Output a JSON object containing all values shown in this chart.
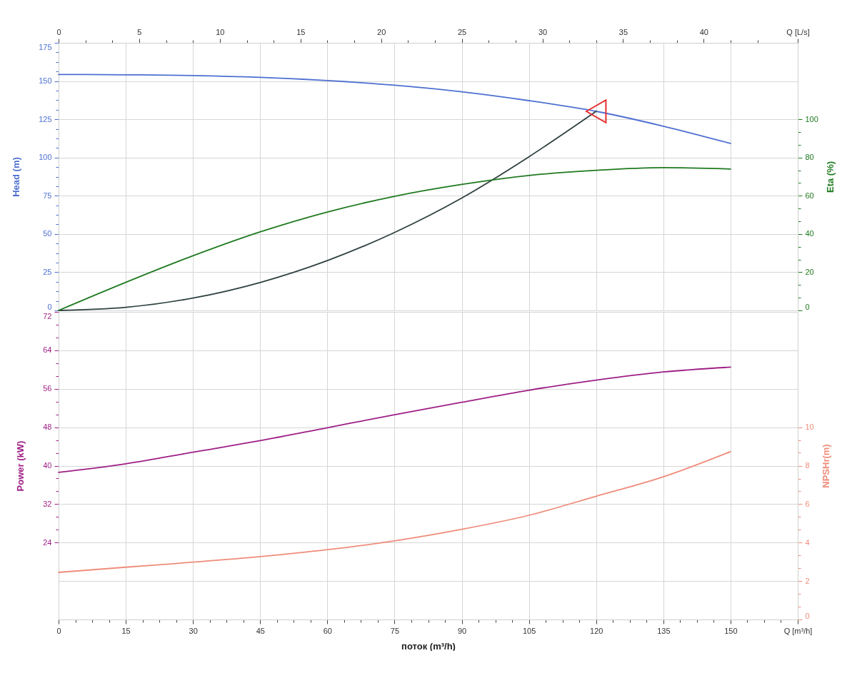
{
  "chart_data": [
    {
      "type": "line",
      "ylabel": "Head (m)",
      "y2label": "Eta (%)",
      "x": [
        0,
        15,
        30,
        45,
        60,
        75,
        90,
        105,
        120,
        135,
        150
      ],
      "series": [
        {
          "color": "#4e6fd1",
          "values": [
            154.3,
            154.1,
            153.6,
            152.4,
            150.3,
            147.3,
            143.0,
            137.2,
            130.2,
            120.5,
            109.2
          ]
        },
        {
          "color": "#2f4040",
          "x": [
            0,
            15,
            30,
            45,
            60,
            75,
            90,
            105,
            120
          ],
          "values": [
            0,
            2.0,
            8.1,
            18.3,
            32.6,
            51.0,
            73.5,
            100.5,
            130.2
          ]
        },
        {
          "type": "scatter",
          "color": "#e53030",
          "marker": "triangle",
          "x": [
            120
          ],
          "values": [
            130.2
          ]
        },
        {
          "color": "#1f7a1f",
          "axis": "y2",
          "values": [
            0,
            14.7,
            28.6,
            41.1,
            51.5,
            59.7,
            65.9,
            70.6,
            73.3,
            74.7,
            74.0
          ]
        }
      ],
      "xlim": [
        0,
        165
      ],
      "xticks": [
        0,
        15,
        30,
        45,
        60,
        75,
        90,
        105,
        120,
        135,
        150,
        165
      ],
      "x2lim": [
        0,
        45.83
      ],
      "x2ticks": [
        0,
        {
          "value": 1.67,
          "label": null
        },
        {
          "value": 3.33,
          "label": null
        },
        5,
        {
          "value": 6.67,
          "label": null
        },
        {
          "value": 8.33,
          "label": null
        },
        10,
        {
          "value": 11.67,
          "label": null
        },
        {
          "value": 13.33,
          "label": null
        },
        15,
        {
          "value": 16.67,
          "label": null
        },
        {
          "value": 18.33,
          "label": null
        },
        20,
        {
          "value": 21.67,
          "label": null
        },
        {
          "value": 23.33,
          "label": null
        },
        25,
        {
          "value": 26.67,
          "label": null
        },
        {
          "value": 28.33,
          "label": null
        },
        30,
        {
          "value": 31.67,
          "label": null
        },
        {
          "value": 33.33,
          "label": null
        },
        35,
        {
          "value": 36.67,
          "label": null
        },
        {
          "value": 38.33,
          "label": null
        },
        40,
        {
          "value": 41.67,
          "label": null
        },
        {
          "value": 43.33,
          "label": null
        },
        {
          "value": 45.83,
          "label": "Q [L/s]"
        }
      ],
      "ylim": [
        0,
        175
      ],
      "yticks": [
        0,
        {
          "value": 6.25,
          "label": null
        },
        {
          "value": 12.5,
          "label": null
        },
        {
          "value": 18.75,
          "label": null
        },
        25,
        {
          "value": 31.25,
          "label": null
        },
        {
          "value": 37.5,
          "label": null
        },
        {
          "value": 43.75,
          "label": null
        },
        50,
        {
          "value": 56.25,
          "label": null
        },
        {
          "value": 62.5,
          "label": null
        },
        {
          "value": 68.75,
          "label": null
        },
        75,
        {
          "value": 81.25,
          "label": null
        },
        {
          "value": 87.5,
          "label": null
        },
        {
          "value": 93.75,
          "label": null
        },
        100,
        {
          "value": 106.25,
          "label": null
        },
        {
          "value": 112.5,
          "label": null
        },
        {
          "value": 118.75,
          "label": null
        },
        125,
        {
          "value": 131.25,
          "label": null
        },
        {
          "value": 137.5,
          "label": null
        },
        {
          "value": 143.75,
          "label": null
        },
        150,
        {
          "value": 156.25,
          "label": null
        },
        {
          "value": 162.5,
          "label": null
        },
        {
          "value": 168.75,
          "label": null
        },
        175
      ],
      "y2lim": [
        0,
        140
      ],
      "y2ticks": [
        0,
        {
          "value": 6.67,
          "label": null
        },
        {
          "value": 13.33,
          "label": null
        },
        20,
        {
          "value": 26.67,
          "label": null
        },
        {
          "value": 33.33,
          "label": null
        },
        40,
        {
          "value": 46.67,
          "label": null
        },
        {
          "value": 53.33,
          "label": null
        },
        60,
        {
          "value": 66.67,
          "label": null
        },
        {
          "value": 73.33,
          "label": null
        },
        80,
        {
          "value": 86.67,
          "label": null
        },
        {
          "value": 93.33,
          "label": null
        },
        100
      ],
      "tick_labels": "y",
      "grid": true
    },
    {
      "type": "line",
      "xlabel": "поток (m³/h)",
      "ylabel": "Power (kW)",
      "y2label": "NPSHr(m)",
      "x": [
        0,
        15,
        30,
        45,
        60,
        75,
        90,
        105,
        120,
        135,
        150
      ],
      "series": [
        {
          "color": "#9e1f86",
          "values": [
            38.6,
            40.4,
            42.8,
            45.2,
            47.9,
            50.6,
            53.2,
            55.7,
            57.8,
            59.5,
            60.5
          ]
        },
        {
          "color": "#ef8c7a",
          "axis": "y2",
          "values": [
            2.45,
            2.72,
            2.98,
            3.27,
            3.63,
            4.09,
            4.69,
            5.42,
            6.41,
            7.42,
            8.73
          ]
        }
      ],
      "xlim": [
        0,
        165
      ],
      "xticks": [
        0,
        {
          "value": 3.75,
          "label": null
        },
        {
          "value": 7.5,
          "label": null
        },
        {
          "value": 11.25,
          "label": null
        },
        15,
        {
          "value": 18.75,
          "label": null
        },
        {
          "value": 22.5,
          "label": null
        },
        {
          "value": 26.25,
          "label": null
        },
        30,
        {
          "value": 33.75,
          "label": null
        },
        {
          "value": 37.5,
          "label": null
        },
        {
          "value": 41.25,
          "label": null
        },
        45,
        {
          "value": 48.75,
          "label": null
        },
        {
          "value": 52.5,
          "label": null
        },
        {
          "value": 56.25,
          "label": null
        },
        60,
        {
          "value": 63.75,
          "label": null
        },
        {
          "value": 67.5,
          "label": null
        },
        {
          "value": 71.25,
          "label": null
        },
        75,
        {
          "value": 78.75,
          "label": null
        },
        {
          "value": 82.5,
          "label": null
        },
        {
          "value": 86.25,
          "label": null
        },
        90,
        {
          "value": 93.75,
          "label": null
        },
        {
          "value": 97.5,
          "label": null
        },
        {
          "value": 101.25,
          "label": null
        },
        105,
        {
          "value": 108.75,
          "label": null
        },
        {
          "value": 112.5,
          "label": null
        },
        {
          "value": 116.25,
          "label": null
        },
        120,
        {
          "value": 123.75,
          "label": null
        },
        {
          "value": 127.5,
          "label": null
        },
        {
          "value": 131.25,
          "label": null
        },
        135,
        {
          "value": 138.75,
          "label": null
        },
        {
          "value": 142.5,
          "label": null
        },
        {
          "value": 146.25,
          "label": null
        },
        150,
        {
          "value": 153.75,
          "label": null
        },
        {
          "value": 157.5,
          "label": null
        },
        {
          "value": 161.25,
          "label": null
        },
        {
          "value": 165,
          "label": "Q [m³/h]"
        }
      ],
      "ylim": [
        8,
        72
      ],
      "yticks": [
        24,
        {
          "value": 26.67,
          "label": null
        },
        {
          "value": 29.33,
          "label": null
        },
        32,
        {
          "value": 34.67,
          "label": null
        },
        {
          "value": 37.33,
          "label": null
        },
        40,
        {
          "value": 42.67,
          "label": null
        },
        {
          "value": 45.33,
          "label": null
        },
        48,
        {
          "value": 50.67,
          "label": null
        },
        {
          "value": 53.33,
          "label": null
        },
        56,
        {
          "value": 58.67,
          "label": null
        },
        {
          "value": 61.33,
          "label": null
        },
        64,
        {
          "value": 66.67,
          "label": null
        },
        {
          "value": 69.33,
          "label": null
        },
        72
      ],
      "y2lim": [
        0,
        16
      ],
      "y2ticks": [
        0,
        {
          "value": 0.67,
          "label": null
        },
        {
          "value": 1.33,
          "label": null
        },
        2,
        {
          "value": 2.67,
          "label": null
        },
        {
          "value": 3.33,
          "label": null
        },
        4,
        {
          "value": 4.67,
          "label": null
        },
        {
          "value": 5.33,
          "label": null
        },
        6,
        {
          "value": 6.67,
          "label": null
        },
        {
          "value": 7.33,
          "label": null
        },
        8,
        {
          "value": 8.67,
          "label": null
        },
        {
          "value": 9.33,
          "label": null
        },
        10
      ],
      "grid": true
    }
  ]
}
